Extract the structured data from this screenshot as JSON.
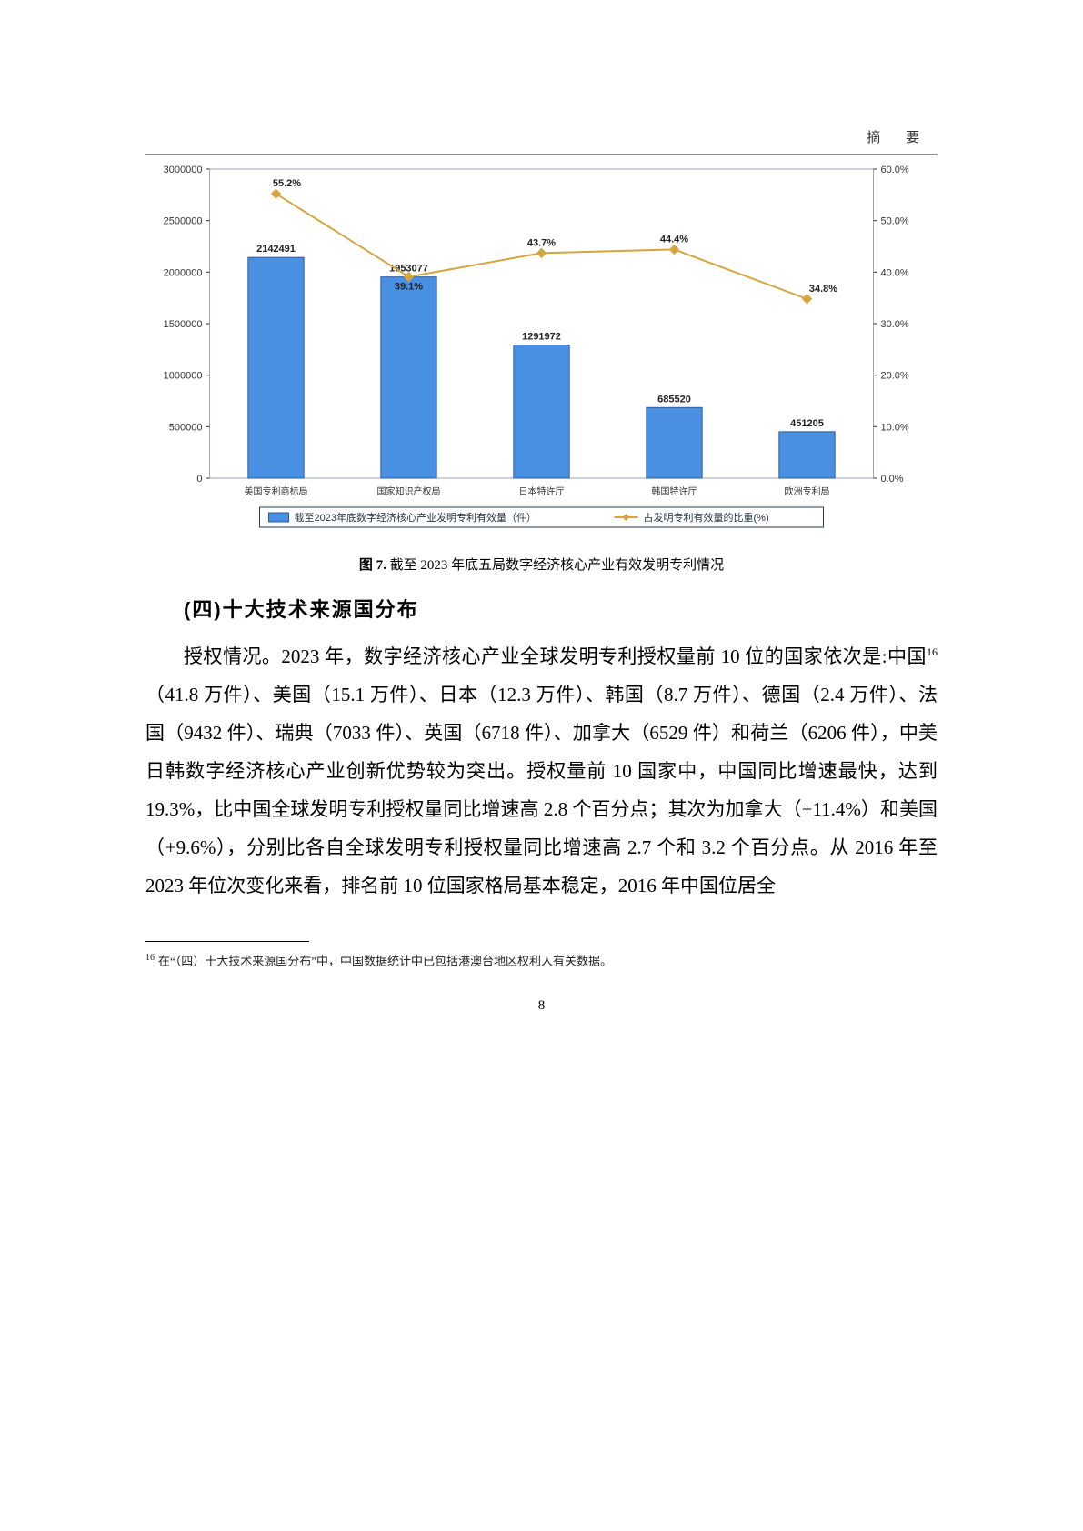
{
  "header": {
    "label": "摘 要"
  },
  "chart": {
    "type": "bar+line",
    "background_color": "#ffffff",
    "plot_border_color": "#9aa7b8",
    "bar_color": "#4a90e2",
    "bar_border_color": "#2e5c9e",
    "line_color": "#d6a542",
    "marker_color": "#d6a542",
    "categories": [
      "美国专利商标局",
      "国家知识产权局",
      "日本特许厅",
      "韩国特许厅",
      "欧洲专利局"
    ],
    "bar_values": [
      2142491,
      1953077,
      1291972,
      685520,
      451205
    ],
    "line_values_pct": [
      55.2,
      39.1,
      43.7,
      44.4,
      34.8
    ],
    "y_left": {
      "min": 0,
      "max": 3000000,
      "step": 500000
    },
    "y_right": {
      "min": 0.0,
      "max": 60.0,
      "step": 10.0,
      "suffix": "%"
    },
    "axis_font_size": 11,
    "bar_width_ratio": 0.42,
    "legend": {
      "items": [
        {
          "swatch": "bar",
          "label": "截至2023年底数字经济核心产业发明专利有效量（件）"
        },
        {
          "swatch": "line",
          "label": "占发明专利有效量的比重(%)"
        }
      ],
      "border_color": "#2a3b5a"
    }
  },
  "caption": {
    "prefix": "图 7.",
    "text": " 截至 2023 年底五局数字经济核心产业有效发明专利情况"
  },
  "section": {
    "title": "(四)十大技术来源国分布"
  },
  "body": {
    "text_before_sup": "授权情况。2023 年，数字经济核心产业全球发明专利授权量前 10 位的国家依次是:中国",
    "sup": "16",
    "text_after_sup": "（41.8 万件）、美国（15.1 万件）、日本（12.3 万件）、韩国（8.7 万件）、德国（2.4 万件）、法国（9432 件）、瑞典（7033 件）、英国（6718 件）、加拿大（6529 件）和荷兰（6206 件），中美日韩数字经济核心产业创新优势较为突出。授权量前 10 国家中，中国同比增速最快，达到 19.3%，比中国全球发明专利授权量同比增速高 2.8 个百分点；其次为加拿大（+11.4%）和美国（+9.6%），分别比各自全球发明专利授权量同比增速高 2.7 个和 3.2 个百分点。从 2016 年至 2023 年位次变化来看，排名前 10 位国家格局基本稳定，2016 年中国位居全"
  },
  "footnote": {
    "marker": "16",
    "text": "在“（四）十大技术来源国分布”中，中国数据统计中已包括港澳台地区权利人有关数据。"
  },
  "page_number": "8"
}
